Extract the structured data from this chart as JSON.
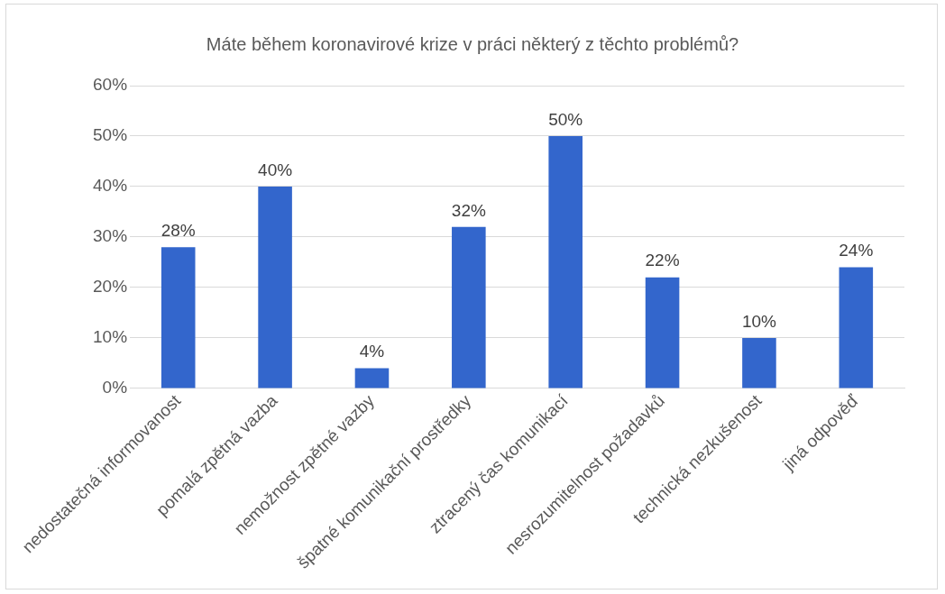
{
  "chart_data": {
    "type": "bar",
    "title": "Máte během koronavirové krize v práci některý z těchto problémů?",
    "categories": [
      "nedostatečná informovanost",
      "pomalá zpětná vazba",
      "nemožnost zpětné vazby",
      "špatné komunikační prostředky",
      "ztracený čas komunikací",
      "nesrozumitelnost požadavků",
      "technická nezkušenost",
      "jiná odpověď"
    ],
    "values": [
      28,
      40,
      4,
      32,
      50,
      22,
      10,
      24
    ],
    "value_labels": [
      "28%",
      "40%",
      "4%",
      "32%",
      "50%",
      "22%",
      "10%",
      "24%"
    ],
    "color": "#3366cc",
    "ylim": [
      0,
      60
    ],
    "yticks": [
      {
        "value": 0,
        "label": "0%"
      },
      {
        "value": 10,
        "label": "10%"
      },
      {
        "value": 20,
        "label": "20%"
      },
      {
        "value": 30,
        "label": "30%"
      },
      {
        "value": 40,
        "label": "40%"
      },
      {
        "value": 50,
        "label": "50%"
      },
      {
        "value": 60,
        "label": "60%"
      }
    ],
    "grid": "y",
    "legend": false
  }
}
